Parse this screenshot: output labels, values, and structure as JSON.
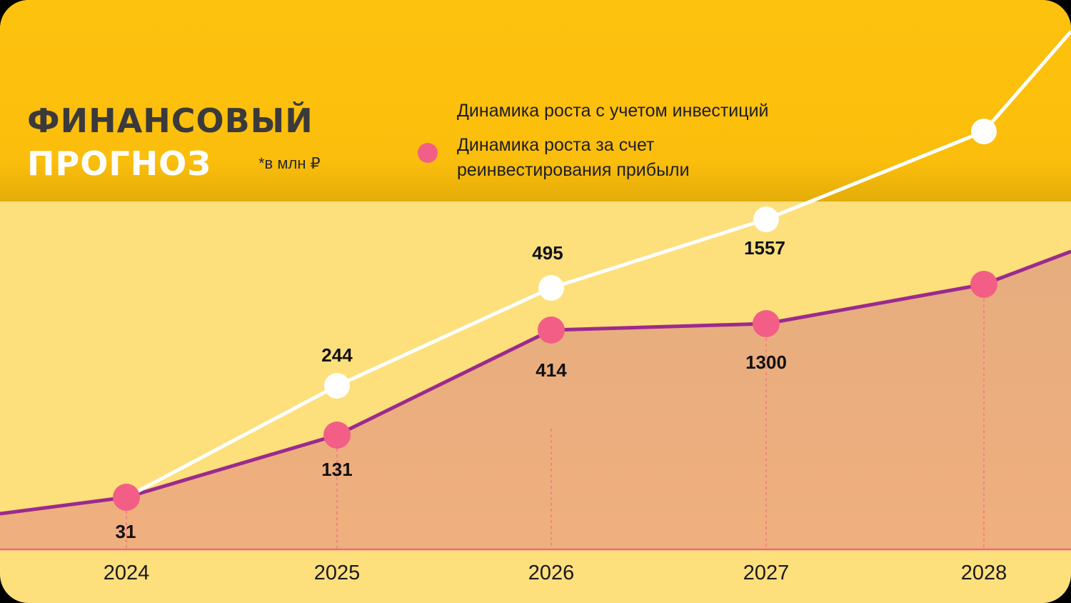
{
  "header": {
    "title_line_1": "ФИНАНСОВЫЙ",
    "title_line_2": "ПРОГНОЗ",
    "unit_note": "*в млн ₽"
  },
  "legend": {
    "series_1": "Динамика роста с учетом инвестиций",
    "series_2": "Динамика роста за счет реинвестирования прибыли"
  },
  "colors": {
    "header_band": "#FDC20E",
    "plot_background": "#FDDF7C",
    "series_1_line": "#FFFFFF",
    "series_2_line": "#9B2A8E",
    "series_2_marker": "#F35E86",
    "area_fill": "#E8AE7F"
  },
  "chart_data": {
    "type": "line",
    "categories": [
      "2024",
      "2025",
      "2026",
      "2027",
      "2028"
    ],
    "series": [
      {
        "name": "Динамика роста с учетом инвестиций",
        "values": [
          31,
          244,
          495,
          1557,
          null
        ],
        "labels": [
          "",
          "244",
          "495",
          "1557",
          ""
        ]
      },
      {
        "name": "Динамика роста за счет реинвестирования прибыли",
        "values": [
          31,
          131,
          414,
          1300,
          null
        ],
        "labels": [
          "31",
          "131",
          "414",
          "1300",
          ""
        ]
      }
    ]
  }
}
